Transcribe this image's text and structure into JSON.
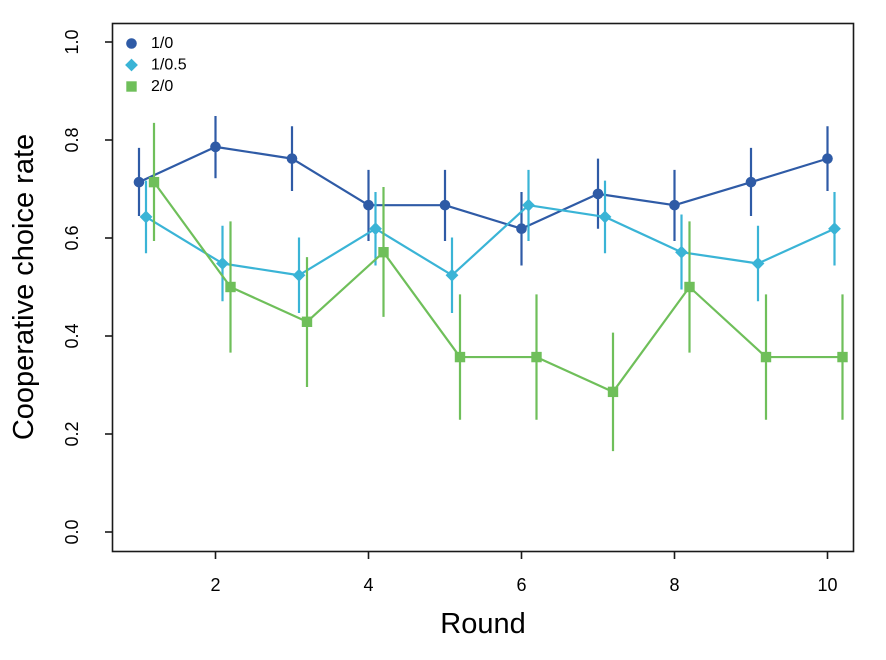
{
  "figure": {
    "background": "#ffffff",
    "frame_color": "#1a1a1a",
    "text_color": "#000000"
  },
  "chart_data": {
    "type": "line",
    "title": "",
    "xlabel": "Round",
    "ylabel": "Cooperative choice rate",
    "x": [
      1,
      2,
      3,
      4,
      5,
      6,
      7,
      8,
      9,
      10
    ],
    "x_ticks": [
      2,
      4,
      6,
      8,
      10
    ],
    "x_tick_labels": [
      "2",
      "4",
      "6",
      "8",
      "10"
    ],
    "y_ticks": [
      0.0,
      0.2,
      0.4,
      0.6,
      0.8,
      1.0
    ],
    "y_tick_labels": [
      "0.0",
      "0.2",
      "0.4",
      "0.6",
      "0.8",
      "1.0"
    ],
    "xlim": [
      0.65,
      10.35
    ],
    "ylim": [
      0.0,
      1.0
    ],
    "grid": false,
    "legend_position": "top-left",
    "error_bars": "vertical, no caps, +/- 1 SE",
    "series": [
      {
        "name": "1/0",
        "marker": "circle",
        "color": "#2f5ba6",
        "values": [
          0.714,
          0.786,
          0.762,
          0.667,
          0.667,
          0.619,
          0.69,
          0.667,
          0.714,
          0.762
        ],
        "err_low": [
          0.645,
          0.722,
          0.696,
          0.594,
          0.594,
          0.544,
          0.619,
          0.594,
          0.645,
          0.696
        ],
        "err_high": [
          0.784,
          0.849,
          0.828,
          0.739,
          0.739,
          0.694,
          0.762,
          0.739,
          0.784,
          0.828
        ]
      },
      {
        "name": "1/0.5",
        "marker": "diamond",
        "color": "#3ab4d6",
        "values": [
          0.643,
          0.548,
          0.524,
          0.619,
          0.524,
          0.667,
          0.643,
          0.571,
          0.548,
          0.619
        ],
        "err_low": [
          0.569,
          0.471,
          0.447,
          0.544,
          0.447,
          0.594,
          0.569,
          0.495,
          0.471,
          0.544
        ],
        "err_high": [
          0.717,
          0.625,
          0.601,
          0.694,
          0.601,
          0.739,
          0.717,
          0.648,
          0.625,
          0.694
        ]
      },
      {
        "name": "2/0",
        "marker": "square",
        "color": "#6fbf5a",
        "values": [
          0.714,
          0.5,
          0.429,
          0.571,
          0.357,
          0.357,
          0.286,
          0.5,
          0.357,
          0.357
        ],
        "err_low": [
          0.594,
          0.366,
          0.296,
          0.439,
          0.229,
          0.229,
          0.165,
          0.366,
          0.229,
          0.229
        ],
        "err_high": [
          0.835,
          0.634,
          0.561,
          0.704,
          0.485,
          0.485,
          0.407,
          0.634,
          0.485,
          0.485
        ]
      }
    ]
  }
}
